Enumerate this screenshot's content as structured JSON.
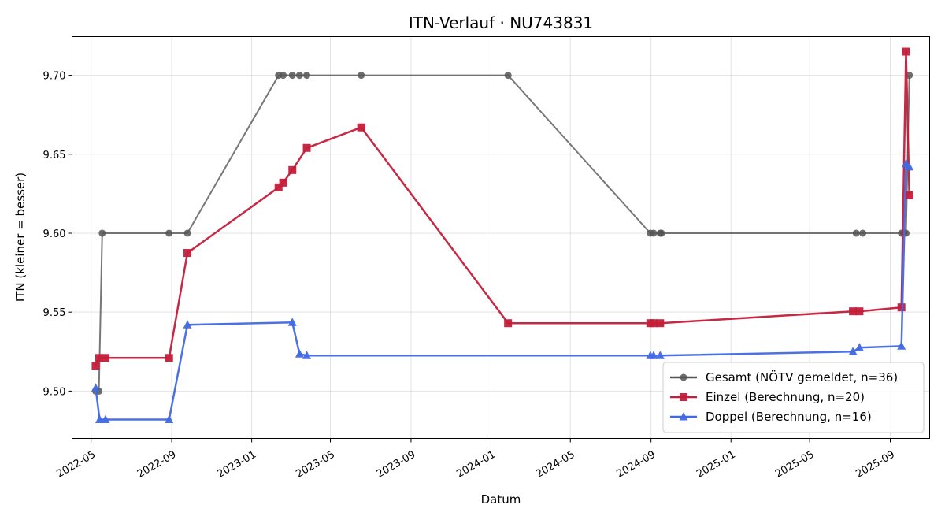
{
  "chart_data": {
    "type": "line",
    "title": "ITN-Verlauf · NU743831",
    "xlabel": "Datum",
    "ylabel": "ITN  (kleiner = besser)",
    "x_ticks": [
      "2022-05",
      "2022-09",
      "2023-01",
      "2023-05",
      "2023-09",
      "2024-01",
      "2024-05",
      "2024-09",
      "2025-01",
      "2025-05",
      "2025-09"
    ],
    "y_ticks": [
      "9.50",
      "9.55",
      "9.60",
      "9.65",
      "9.70"
    ],
    "ylim": [
      9.47,
      9.7245
    ],
    "xlim": [
      "2022-04-02",
      "2025-10-31"
    ],
    "grid": true,
    "legend_position": "lower right",
    "series": [
      {
        "name": "Gesamt (NÖTV gemeldet, n=36)",
        "color": "#555555",
        "marker": "circle",
        "points": [
          [
            "2022-05-08",
            9.5
          ],
          [
            "2022-05-13",
            9.5
          ],
          [
            "2022-05-18",
            9.6
          ],
          [
            "2022-08-28",
            9.6
          ],
          [
            "2022-09-25",
            9.6
          ],
          [
            "2023-02-11",
            9.7
          ],
          [
            "2023-02-18",
            9.7
          ],
          [
            "2023-03-04",
            9.7
          ],
          [
            "2023-03-15",
            9.7
          ],
          [
            "2023-03-26",
            9.7
          ],
          [
            "2023-06-17",
            9.7
          ],
          [
            "2024-01-27",
            9.7
          ],
          [
            "2024-08-31",
            9.6
          ],
          [
            "2024-09-05",
            9.6
          ],
          [
            "2024-09-15",
            9.6
          ],
          [
            "2024-09-17",
            9.6
          ],
          [
            "2025-07-11",
            9.6
          ],
          [
            "2025-07-21",
            9.6
          ],
          [
            "2025-09-18",
            9.6
          ],
          [
            "2025-09-22",
            9.6
          ],
          [
            "2025-09-25",
            9.6
          ],
          [
            "2025-09-30",
            9.7
          ]
        ]
      },
      {
        "name": "Einzel (Berechnung, n=20)",
        "color": "#c41e3a",
        "marker": "square",
        "points": [
          [
            "2022-05-08",
            9.516
          ],
          [
            "2022-05-13",
            9.521
          ],
          [
            "2022-05-23",
            9.521
          ],
          [
            "2022-08-28",
            9.521
          ],
          [
            "2022-09-25",
            9.5875
          ],
          [
            "2023-02-11",
            9.629
          ],
          [
            "2023-02-18",
            9.632
          ],
          [
            "2023-03-04",
            9.64
          ],
          [
            "2023-03-26",
            9.654
          ],
          [
            "2023-06-17",
            9.667
          ],
          [
            "2024-01-27",
            9.543
          ],
          [
            "2024-08-31",
            9.543
          ],
          [
            "2024-09-05",
            9.543
          ],
          [
            "2024-09-15",
            9.543
          ],
          [
            "2025-07-06",
            9.5505
          ],
          [
            "2025-07-16",
            9.5505
          ],
          [
            "2025-09-18",
            9.553
          ],
          [
            "2025-09-25",
            9.715
          ],
          [
            "2025-09-30",
            9.624
          ]
        ]
      },
      {
        "name": "Doppel (Berechnung, n=16)",
        "color": "#4169e1",
        "marker": "triangle",
        "points": [
          [
            "2022-05-08",
            9.502
          ],
          [
            "2022-05-14",
            9.482
          ],
          [
            "2022-05-23",
            9.482
          ],
          [
            "2022-08-28",
            9.482
          ],
          [
            "2022-09-25",
            9.542
          ],
          [
            "2023-03-04",
            9.5435
          ],
          [
            "2023-03-15",
            9.5235
          ],
          [
            "2023-03-26",
            9.5225
          ],
          [
            "2024-08-31",
            9.5225
          ],
          [
            "2024-09-05",
            9.5225
          ],
          [
            "2024-09-15",
            9.5225
          ],
          [
            "2025-07-06",
            9.525
          ],
          [
            "2025-07-16",
            9.5275
          ],
          [
            "2025-09-18",
            9.5285
          ],
          [
            "2025-09-25",
            9.644
          ],
          [
            "2025-09-30",
            9.642
          ]
        ]
      }
    ]
  }
}
